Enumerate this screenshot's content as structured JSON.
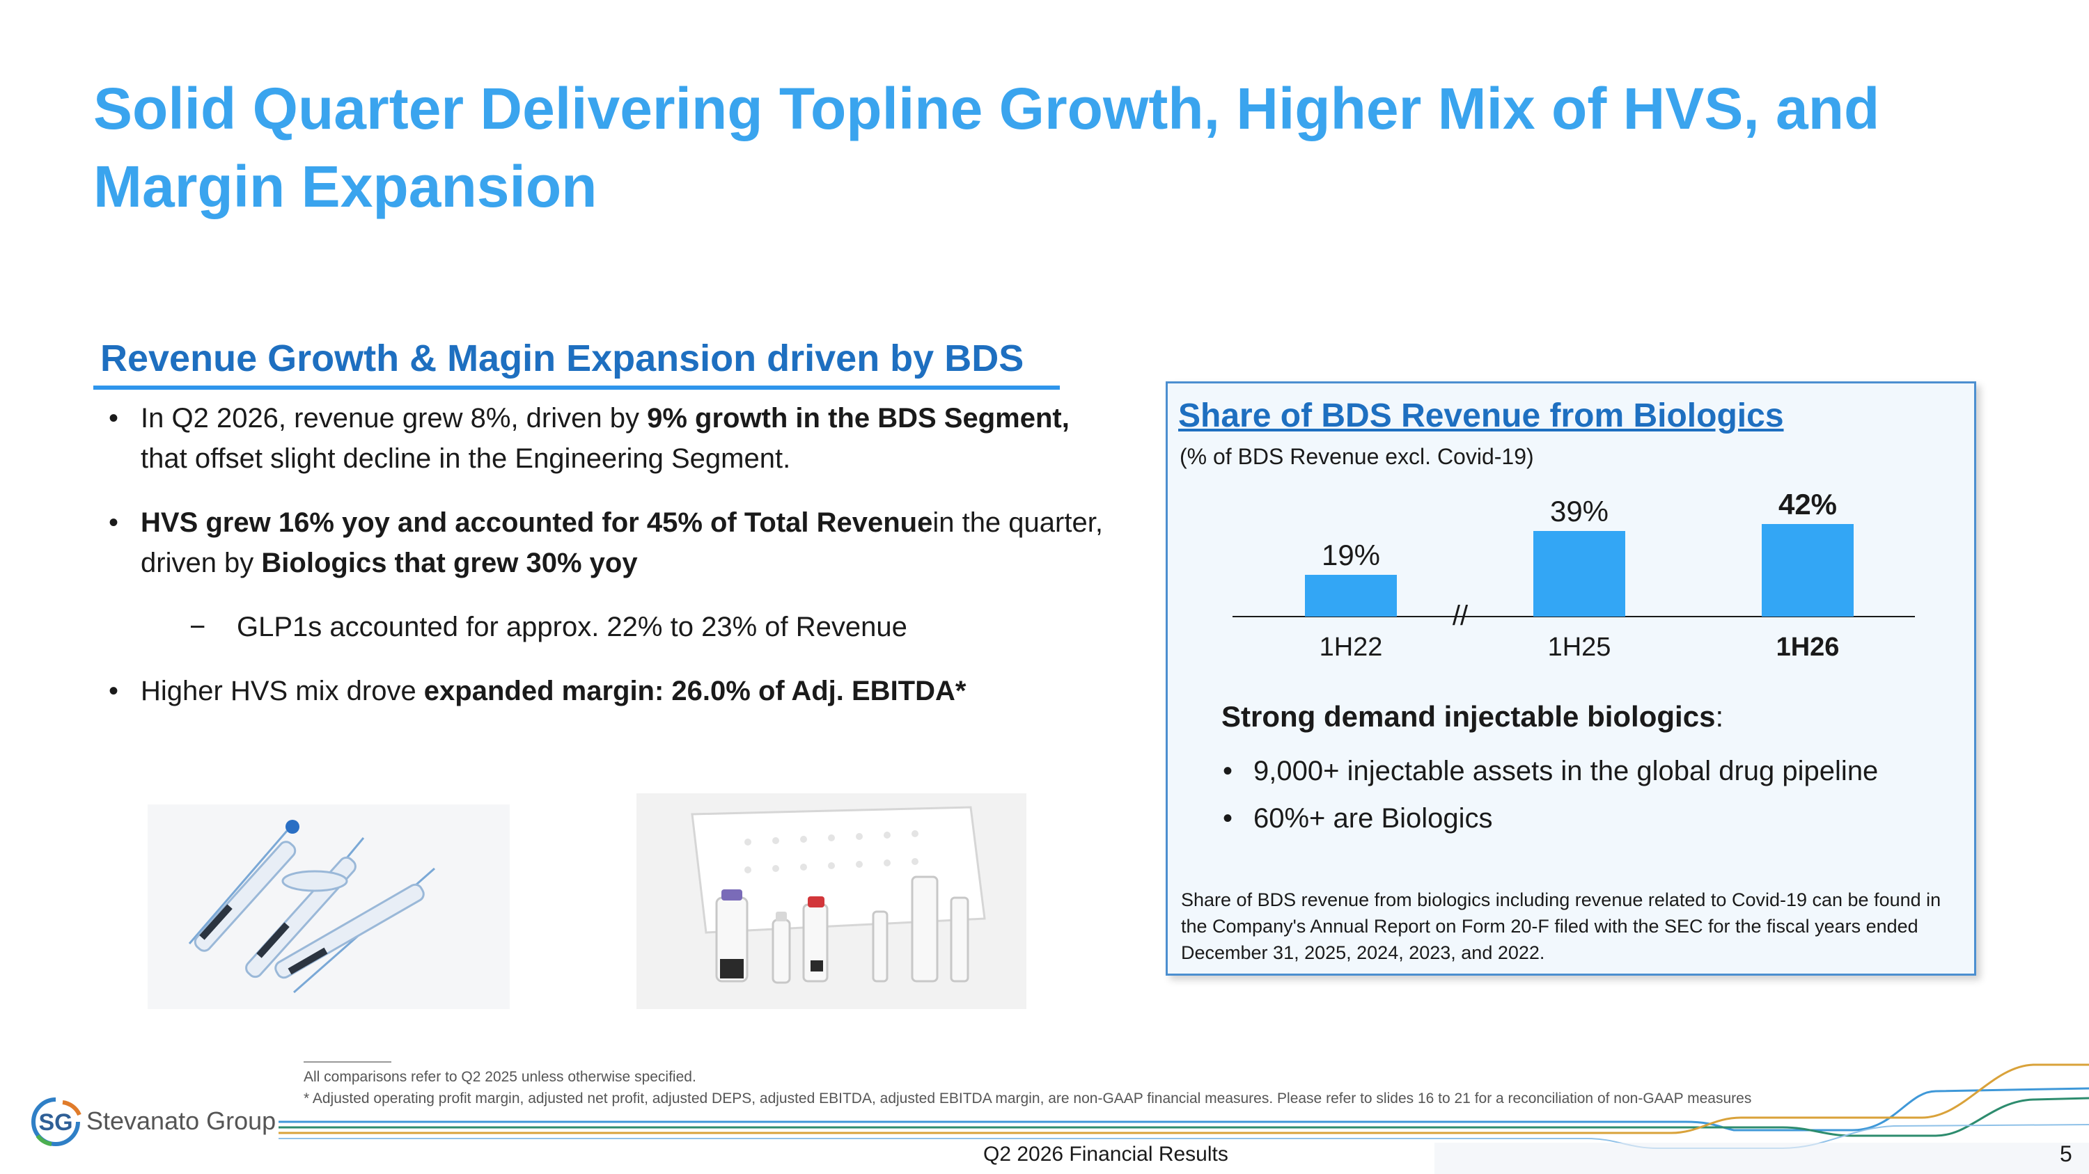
{
  "title": "Solid Quarter Delivering Topline Growth, Higher Mix of HVS, and Margin Expansion",
  "left": {
    "heading": "Revenue Growth & Magin Expansion driven by BDS",
    "bullet_marker": "•",
    "sub_marker": "−",
    "b1": {
      "t1": "In Q2 2026, revenue grew 8%, driven by ",
      "b1": "9% growth in the BDS Segment,",
      "t2": " that offset slight decline in the Engineering Segment."
    },
    "b2": {
      "b1": "HVS grew 16% yoy and accounted for 45% of Total Revenue",
      "t1": "in the quarter, driven by ",
      "b2": "Biologics that grew 30% yoy"
    },
    "b2_sub": "GLP1s accounted for approx. 22% to 23% of Revenue",
    "b3": {
      "t1": "Higher HVS mix drove ",
      "b1": "expanded margin: 26.0% of Adj. EBITDA*"
    }
  },
  "panel": {
    "title": "Share of BDS Revenue from Biologics",
    "subtitle": "(% of BDS Revenue excl. Covid-19)",
    "axis_break": "//",
    "strong_label": "Strong demand injectable biologics",
    "strong_colon": ":",
    "bullets": [
      "9,000+ injectable assets in the global drug pipeline",
      "60%+ are Biologics"
    ],
    "note": "Share of BDS revenue from biologics including revenue related to Covid-19 can be found in the Company's Annual Report on Form 20-F filed with the SEC for the fiscal years ended December 31, 2025, 2024, 2023, and 2022."
  },
  "chart_data": {
    "type": "bar",
    "title": "Share of BDS Revenue from Biologics",
    "categories": [
      "1H22",
      "1H25",
      "1H26"
    ],
    "values": [
      19,
      39,
      42
    ],
    "value_labels": [
      "19%",
      "39%",
      "42%"
    ],
    "highlight_index": 2,
    "axis_break_after_index": 0,
    "ylim": [
      0,
      45
    ],
    "grid": false,
    "bar_color": "#33a6f5"
  },
  "footnotes": {
    "line1": "All comparisons refer to Q2 2025 unless otherwise specified.",
    "line2": "* Adjusted operating profit margin, adjusted net profit, adjusted DEPS, adjusted EBITDA, adjusted EBITDA margin, are non-GAAP financial measures. Please refer to slides 16 to 21 for a reconciliation of non-GAAP measures"
  },
  "footer": {
    "logo_mark": "SG",
    "logo_text": "Stevanato Group",
    "title": "Q2 2026 Financial Results",
    "page": "5"
  }
}
